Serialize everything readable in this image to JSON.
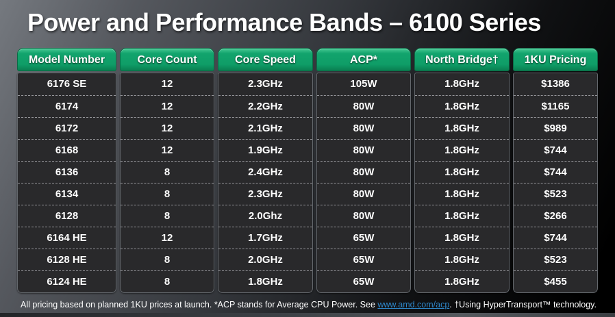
{
  "title": "Power and Performance Bands – 6100 Series",
  "table": {
    "columns": [
      "Model Number",
      "Core Count",
      "Core Speed",
      "ACP*",
      "North Bridge†",
      "1KU Pricing"
    ],
    "rows": [
      [
        "6176 SE",
        "12",
        "2.3GHz",
        "105W",
        "1.8GHz",
        "$1386"
      ],
      [
        "6174",
        "12",
        "2.2GHz",
        "80W",
        "1.8GHz",
        "$1165"
      ],
      [
        "6172",
        "12",
        "2.1GHz",
        "80W",
        "1.8GHz",
        "$989"
      ],
      [
        "6168",
        "12",
        "1.9GHz",
        "80W",
        "1.8GHz",
        "$744"
      ],
      [
        "6136",
        "8",
        "2.4GHz",
        "80W",
        "1.8GHz",
        "$744"
      ],
      [
        "6134",
        "8",
        "2.3GHz",
        "80W",
        "1.8GHz",
        "$523"
      ],
      [
        "6128",
        "8",
        "2.0Ghz",
        "80W",
        "1.8GHz",
        "$266"
      ],
      [
        "6164 HE",
        "12",
        "1.7GHz",
        "65W",
        "1.8GHz",
        "$744"
      ],
      [
        "6128 HE",
        "8",
        "2.0GHz",
        "65W",
        "1.8GHz",
        "$523"
      ],
      [
        "6124 HE",
        "8",
        "1.8GHz",
        "65W",
        "1.8GHz",
        "$455"
      ]
    ]
  },
  "footer": {
    "text_before_link": "All pricing based on planned 1KU prices at launch.  *ACP stands for Average CPU Power.  See ",
    "link": "www.amd.com/acp",
    "text_after_link": ".  †Using HyperTransport™ technology."
  },
  "colors": {
    "header_green": "#12a46d",
    "link_blue": "#2e86c8"
  }
}
